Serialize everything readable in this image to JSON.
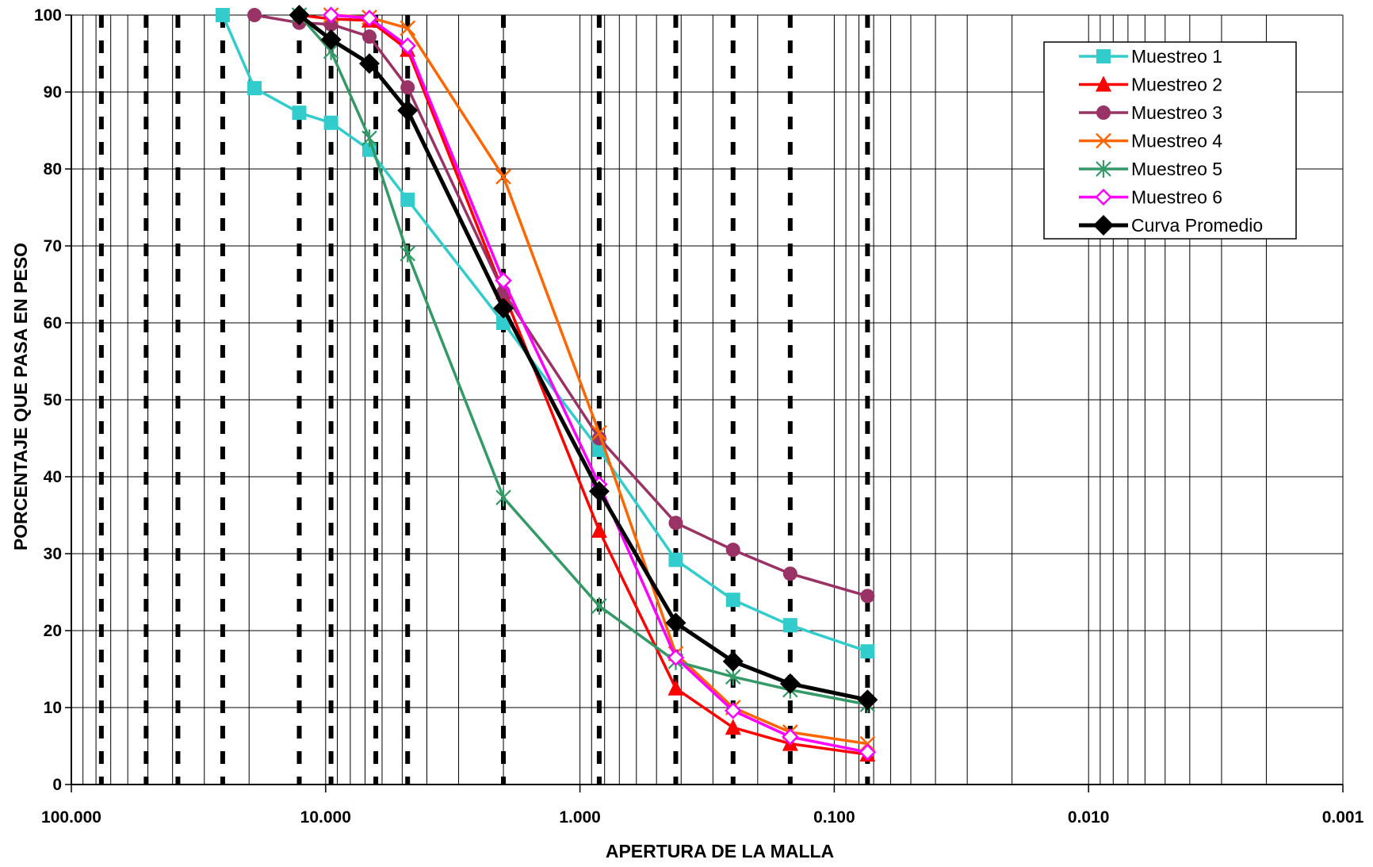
{
  "chart_data": {
    "type": "line",
    "title": "",
    "xlabel": "APERTURA DE LA MALLA",
    "ylabel": "PORCENTAJE QUE PASA EN PESO",
    "x_scale": "log",
    "x_reversed": true,
    "xlim": [
      100,
      0.001
    ],
    "ylim": [
      0,
      100
    ],
    "x_ticks": [
      {
        "value": 100,
        "label": "100.000"
      },
      {
        "value": 10,
        "label": "10.000"
      },
      {
        "value": 1,
        "label": "1.000"
      },
      {
        "value": 0.1,
        "label": "0.100"
      },
      {
        "value": 0.01,
        "label": "0.010"
      },
      {
        "value": 0.001,
        "label": "0.001"
      }
    ],
    "y_ticks": [
      {
        "value": 0,
        "label": "0"
      },
      {
        "value": 10,
        "label": "10"
      },
      {
        "value": 20,
        "label": "20"
      },
      {
        "value": 30,
        "label": "30"
      },
      {
        "value": 40,
        "label": "40"
      },
      {
        "value": 50,
        "label": "50"
      },
      {
        "value": 60,
        "label": "60"
      },
      {
        "value": 70,
        "label": "70"
      },
      {
        "value": 80,
        "label": "80"
      },
      {
        "value": 90,
        "label": "90"
      },
      {
        "value": 100,
        "label": "100"
      }
    ],
    "grid": true,
    "dashed_verticals": [
      76.2,
      50.8,
      38.1,
      25.4,
      12.7,
      9.525,
      6.35,
      4.76,
      2.0,
      0.84,
      0.42,
      0.25,
      0.149,
      0.074
    ],
    "legend_position": "top-right",
    "series": [
      {
        "name": "Muestreo 1",
        "color": "#33CCCC",
        "marker": "square",
        "x": [
          25.4,
          19.05,
          12.7,
          9.525,
          6.73,
          4.76,
          2.0,
          0.84,
          0.42,
          0.25,
          0.149,
          0.074
        ],
        "y": [
          100,
          90.5,
          87.3,
          86,
          82.5,
          76,
          60,
          43.5,
          29.2,
          24,
          20.7,
          17.3
        ]
      },
      {
        "name": "Muestreo 2",
        "color": "#FF0000",
        "marker": "triangle",
        "x": [
          12.7,
          9.525,
          6.73,
          4.76,
          2.0,
          0.84,
          0.42,
          0.25,
          0.149,
          0.074
        ],
        "y": [
          100,
          99.5,
          99.3,
          95.5,
          64,
          33,
          12.5,
          7.4,
          5.3,
          3.9
        ]
      },
      {
        "name": "Muestreo 3",
        "color": "#993366",
        "marker": "circle",
        "x": [
          19.05,
          12.7,
          9.525,
          6.73,
          4.76,
          2.0,
          0.84,
          0.42,
          0.25,
          0.149,
          0.074
        ],
        "y": [
          100,
          99,
          98.8,
          97.2,
          90.6,
          64,
          45,
          34,
          30.5,
          27.4,
          24.5
        ]
      },
      {
        "name": "Muestreo 4",
        "color": "#FF6600",
        "marker": "x",
        "x": [
          9.525,
          6.73,
          4.76,
          2.0,
          0.84,
          0.42,
          0.25,
          0.149,
          0.074
        ],
        "y": [
          100,
          99.7,
          98.3,
          79,
          45.7,
          17,
          10,
          6.8,
          5.3
        ]
      },
      {
        "name": "Muestreo 5",
        "color": "#339966",
        "marker": "star",
        "x": [
          12.7,
          9.525,
          6.73,
          4.76,
          2.0,
          0.84,
          0.42,
          0.25,
          0.149,
          0.074
        ],
        "y": [
          100,
          95.3,
          84,
          69,
          37.3,
          23.2,
          16,
          14,
          12.3,
          10.4
        ]
      },
      {
        "name": "Muestreo 6",
        "color": "#FF00FF",
        "marker": "diamond-open",
        "x": [
          9.525,
          6.73,
          4.76,
          2.0,
          0.84,
          0.42,
          0.25,
          0.149,
          0.074
        ],
        "y": [
          100,
          99.6,
          96,
          65.5,
          39,
          16.5,
          9.6,
          6.2,
          4.2
        ]
      },
      {
        "name": "Curva Promedio",
        "color": "#000000",
        "marker": "diamond",
        "x": [
          12.7,
          9.525,
          6.73,
          4.76,
          2.0,
          0.84,
          0.42,
          0.25,
          0.149,
          0.074
        ],
        "y": [
          100,
          96.8,
          93.7,
          87.6,
          61.9,
          38.1,
          21,
          16,
          13.1,
          11
        ]
      }
    ]
  }
}
